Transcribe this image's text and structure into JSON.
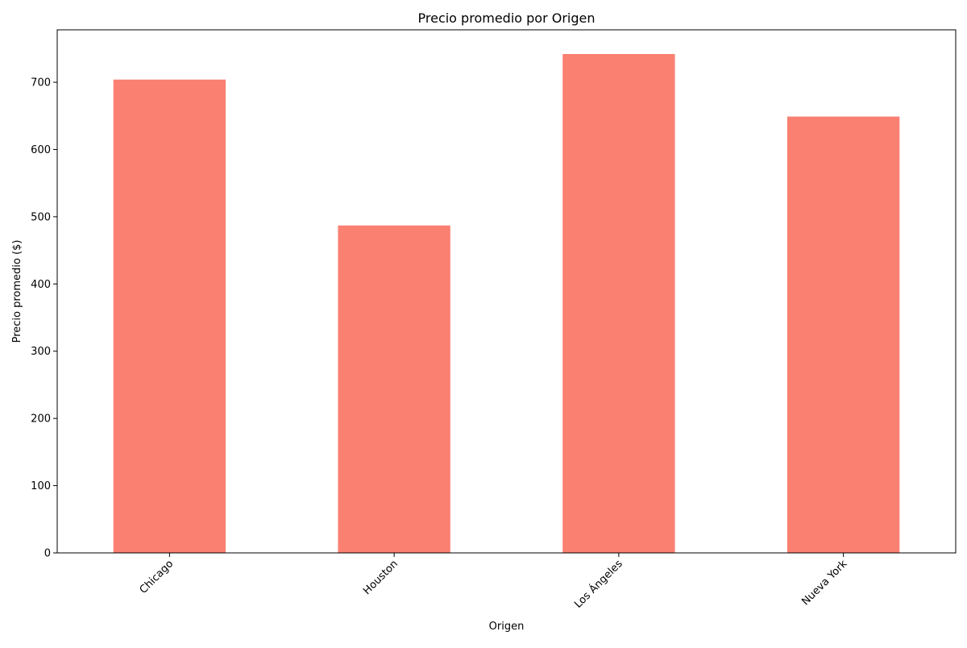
{
  "chart_data": {
    "type": "bar",
    "title": "Precio promedio por Origen",
    "xlabel": "Origen",
    "ylabel": "Precio promedio ($)",
    "categories": [
      "Chicago",
      "Houston",
      "Los Ángeles",
      "Nueva York"
    ],
    "values": [
      704,
      487,
      742,
      649
    ],
    "ylim": [
      0,
      778
    ],
    "yticks": [
      0,
      100,
      200,
      300,
      400,
      500,
      600,
      700
    ],
    "grid": false,
    "legend": "none",
    "bar_color": "#fa8072"
  }
}
